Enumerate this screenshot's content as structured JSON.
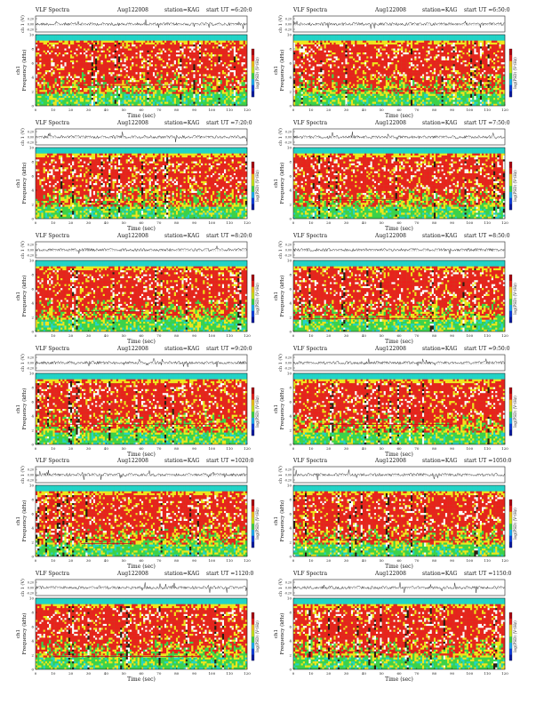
{
  "figure": {
    "title_prefix": "VLF Spectra",
    "date": "Aug122008",
    "station_label": "station=KAG",
    "start_prefix": "start UT =",
    "xlabel": "Time (sec)",
    "ylabel_freq": "Frequency (kHz)",
    "ylabel_ts": "ch 1 (V)",
    "channel_label": "ch1",
    "colorbar_label": "log(PSD) (V²/Hz)",
    "ts_ticks": [
      "0.20",
      "0.00",
      "-0.20"
    ],
    "colors": {
      "high": "#e8221c",
      "mid": "#f2e61c",
      "low": "#3cd24a",
      "band": "#23d3c9",
      "dark": "#2a1a10"
    }
  },
  "chart_data": [
    {
      "type": "heatmap",
      "start_time": "6:20:0",
      "xlim": [
        0,
        120
      ],
      "ylim_freq": [
        0,
        10
      ],
      "ylim_ts": [
        -0.2,
        0.2
      ],
      "x_ticks": [
        0,
        10,
        20,
        30,
        40,
        50,
        60,
        70,
        80,
        90,
        100,
        110,
        120
      ],
      "y_ticks": [
        0,
        2,
        4,
        6,
        8,
        10
      ]
    },
    {
      "type": "heatmap",
      "start_time": "6:50:0",
      "xlim": [
        0,
        120
      ],
      "ylim_freq": [
        0,
        10
      ],
      "ylim_ts": [
        -0.2,
        0.2
      ],
      "x_ticks": [
        0,
        10,
        20,
        30,
        40,
        50,
        60,
        70,
        80,
        90,
        100,
        110,
        120
      ],
      "y_ticks": [
        0,
        2,
        4,
        6,
        8,
        10
      ]
    },
    {
      "type": "heatmap",
      "start_time": "7:20:0",
      "xlim": [
        0,
        120
      ],
      "ylim_freq": [
        0,
        10
      ],
      "ylim_ts": [
        -0.2,
        0.2
      ],
      "x_ticks": [
        0,
        10,
        20,
        30,
        40,
        50,
        60,
        70,
        80,
        90,
        100,
        110,
        120
      ],
      "y_ticks": [
        0,
        2,
        4,
        6,
        8,
        10
      ]
    },
    {
      "type": "heatmap",
      "start_time": "7:50:0",
      "xlim": [
        0,
        120
      ],
      "ylim_freq": [
        0,
        10
      ],
      "ylim_ts": [
        -0.2,
        0.2
      ],
      "x_ticks": [
        0,
        10,
        20,
        30,
        40,
        50,
        60,
        70,
        80,
        90,
        100,
        110,
        120
      ],
      "y_ticks": [
        0,
        2,
        4,
        6,
        8,
        10
      ]
    },
    {
      "type": "heatmap",
      "start_time": "8:20:0",
      "xlim": [
        0,
        120
      ],
      "ylim_freq": [
        0,
        10
      ],
      "ylim_ts": [
        -0.2,
        0.2
      ],
      "x_ticks": [
        0,
        10,
        20,
        30,
        40,
        50,
        60,
        70,
        80,
        90,
        100,
        110,
        120
      ],
      "y_ticks": [
        0,
        2,
        4,
        6,
        8,
        10
      ]
    },
    {
      "type": "heatmap",
      "start_time": "8:50:0",
      "xlim": [
        0,
        120
      ],
      "ylim_freq": [
        0,
        10
      ],
      "ylim_ts": [
        -0.2,
        0.2
      ],
      "x_ticks": [
        0,
        10,
        20,
        30,
        40,
        50,
        60,
        70,
        80,
        90,
        100,
        110,
        120
      ],
      "y_ticks": [
        0,
        2,
        4,
        6,
        8,
        10
      ]
    },
    {
      "type": "heatmap",
      "start_time": "9:20:0",
      "xlim": [
        0,
        120
      ],
      "ylim_freq": [
        0,
        10
      ],
      "ylim_ts": [
        -0.2,
        0.2
      ],
      "x_ticks": [
        0,
        10,
        20,
        30,
        40,
        50,
        60,
        70,
        80,
        90,
        100,
        110,
        120
      ],
      "y_ticks": [
        0,
        2,
        4,
        6,
        8,
        10
      ]
    },
    {
      "type": "heatmap",
      "start_time": "9:50:0",
      "xlim": [
        0,
        120
      ],
      "ylim_freq": [
        0,
        10
      ],
      "ylim_ts": [
        -0.2,
        0.2
      ],
      "x_ticks": [
        0,
        10,
        20,
        30,
        40,
        50,
        60,
        70,
        80,
        90,
        100,
        110,
        120
      ],
      "y_ticks": [
        0,
        2,
        4,
        6,
        8,
        10
      ]
    },
    {
      "type": "heatmap",
      "start_time": "1020:0",
      "xlim": [
        0,
        120
      ],
      "ylim_freq": [
        0,
        10
      ],
      "ylim_ts": [
        -0.2,
        0.2
      ],
      "x_ticks": [
        0,
        10,
        20,
        30,
        40,
        50,
        60,
        70,
        80,
        90,
        100,
        110,
        120
      ],
      "y_ticks": [
        0,
        2,
        4,
        6,
        8,
        10
      ]
    },
    {
      "type": "heatmap",
      "start_time": "1050:0",
      "xlim": [
        0,
        120
      ],
      "ylim_freq": [
        0,
        10
      ],
      "ylim_ts": [
        -0.2,
        0.2
      ],
      "x_ticks": [
        0,
        10,
        20,
        30,
        40,
        50,
        60,
        70,
        80,
        90,
        100,
        110,
        120
      ],
      "y_ticks": [
        0,
        2,
        4,
        6,
        8,
        10
      ]
    },
    {
      "type": "heatmap",
      "start_time": "1120:0",
      "xlim": [
        0,
        120
      ],
      "ylim_freq": [
        0,
        10
      ],
      "ylim_ts": [
        -0.2,
        0.2
      ],
      "x_ticks": [
        0,
        10,
        20,
        30,
        40,
        50,
        60,
        70,
        80,
        90,
        100,
        110,
        120
      ],
      "y_ticks": [
        0,
        2,
        4,
        6,
        8,
        10
      ]
    },
    {
      "type": "heatmap",
      "start_time": "1150:0",
      "xlim": [
        0,
        120
      ],
      "ylim_freq": [
        0,
        10
      ],
      "ylim_ts": [
        -0.2,
        0.2
      ],
      "x_ticks": [
        0,
        10,
        20,
        30,
        40,
        50,
        60,
        70,
        80,
        90,
        100,
        110,
        120
      ],
      "y_ticks": [
        0,
        2,
        4,
        6,
        8,
        10
      ]
    }
  ]
}
